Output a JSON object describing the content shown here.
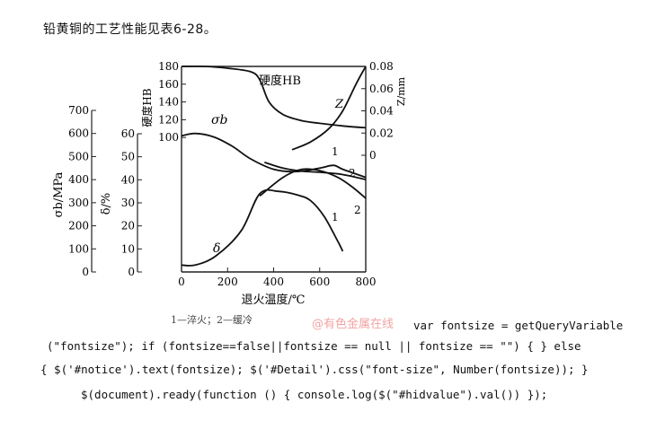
{
  "intro_text": "铅黄铜的工艺性能见表6-28。",
  "figure": {
    "left_axes": {
      "sigma_b_label": "σb/MPa",
      "sigma_b_ticks": [
        "700",
        "600",
        "500",
        "400",
        "300",
        "200",
        "100",
        "0"
      ],
      "delta_label": "δ/%",
      "delta_ticks": [
        "60",
        "50",
        "40",
        "30",
        "20",
        "10",
        "0"
      ]
    },
    "hardness_axis": {
      "label": "硬度HB",
      "ticks": [
        "180",
        "160",
        "140",
        "120",
        "100"
      ]
    },
    "right_axis": {
      "label": "Z/mm",
      "ticks": [
        "0.08",
        "0.06",
        "0.04",
        "0.02",
        "0"
      ]
    },
    "x_axis": {
      "label": "退火温度/℃",
      "ticks": [
        "0",
        "200",
        "400",
        "600",
        "800"
      ]
    },
    "curve_labels": {
      "hardness": "硬度HB",
      "z": "Z",
      "sigma": "σb",
      "delta": "δ",
      "one_upper": "1",
      "two_upper": "2",
      "one_lower": "1",
      "two_lower": "2"
    },
    "caption": "1—淬火；2—缓冷",
    "watermark": "@有色金属在线"
  },
  "chart_data": {
    "type": "line",
    "xlabel": "退火温度/℃",
    "xlim": [
      0,
      800
    ],
    "series": [
      {
        "name": "硬度HB",
        "axis": "硬度HB",
        "x": [
          0,
          100,
          200,
          300,
          340,
          380,
          440,
          520,
          600,
          700,
          800
        ],
        "y": [
          180,
          180,
          178,
          174,
          165,
          140,
          126,
          119,
          116,
          113,
          111
        ]
      },
      {
        "name": "Z",
        "axis": "Z/mm",
        "x": [
          480,
          560,
          640,
          700,
          760,
          800
        ],
        "y": [
          0.005,
          0.012,
          0.024,
          0.04,
          0.065,
          0.08
        ]
      },
      {
        "name": "σb 1",
        "axis": "σb/MPa",
        "x": [
          0,
          60,
          140,
          220,
          300,
          400,
          500,
          600,
          660,
          700,
          800
        ],
        "y": [
          590,
          600,
          585,
          545,
          490,
          445,
          435,
          450,
          462,
          445,
          410
        ]
      },
      {
        "name": "σb 2",
        "axis": "σb/MPa",
        "x": [
          360,
          440,
          520,
          600,
          680,
          740,
          800
        ],
        "y": [
          475,
          450,
          437,
          432,
          425,
          414,
          400
        ]
      },
      {
        "name": "δ 1",
        "axis": "δ/%",
        "x": [
          0,
          60,
          150,
          260,
          340,
          420,
          500,
          560,
          620,
          680,
          700
        ],
        "y": [
          3,
          3,
          7,
          18,
          34,
          35,
          33.5,
          31,
          24,
          13,
          9
        ]
      },
      {
        "name": "δ 2",
        "axis": "δ/%",
        "x": [
          340,
          440,
          520,
          600,
          680,
          740,
          800
        ],
        "y": [
          33,
          41,
          44.5,
          44,
          41,
          37,
          32
        ]
      }
    ]
  },
  "code_lines": [
    "var fontsize = getQueryVariable",
    "(\"fontsize\"); if (fontsize==false||fontsize == null || fontsize == \"\") { } else",
    "{ $('#notice').text(fontsize); $('#Detail').css(\"font-size\", Number(fontsize)); }",
    "$(document).ready(function () { console.log($(\"#hidvalue\").val()) });"
  ]
}
